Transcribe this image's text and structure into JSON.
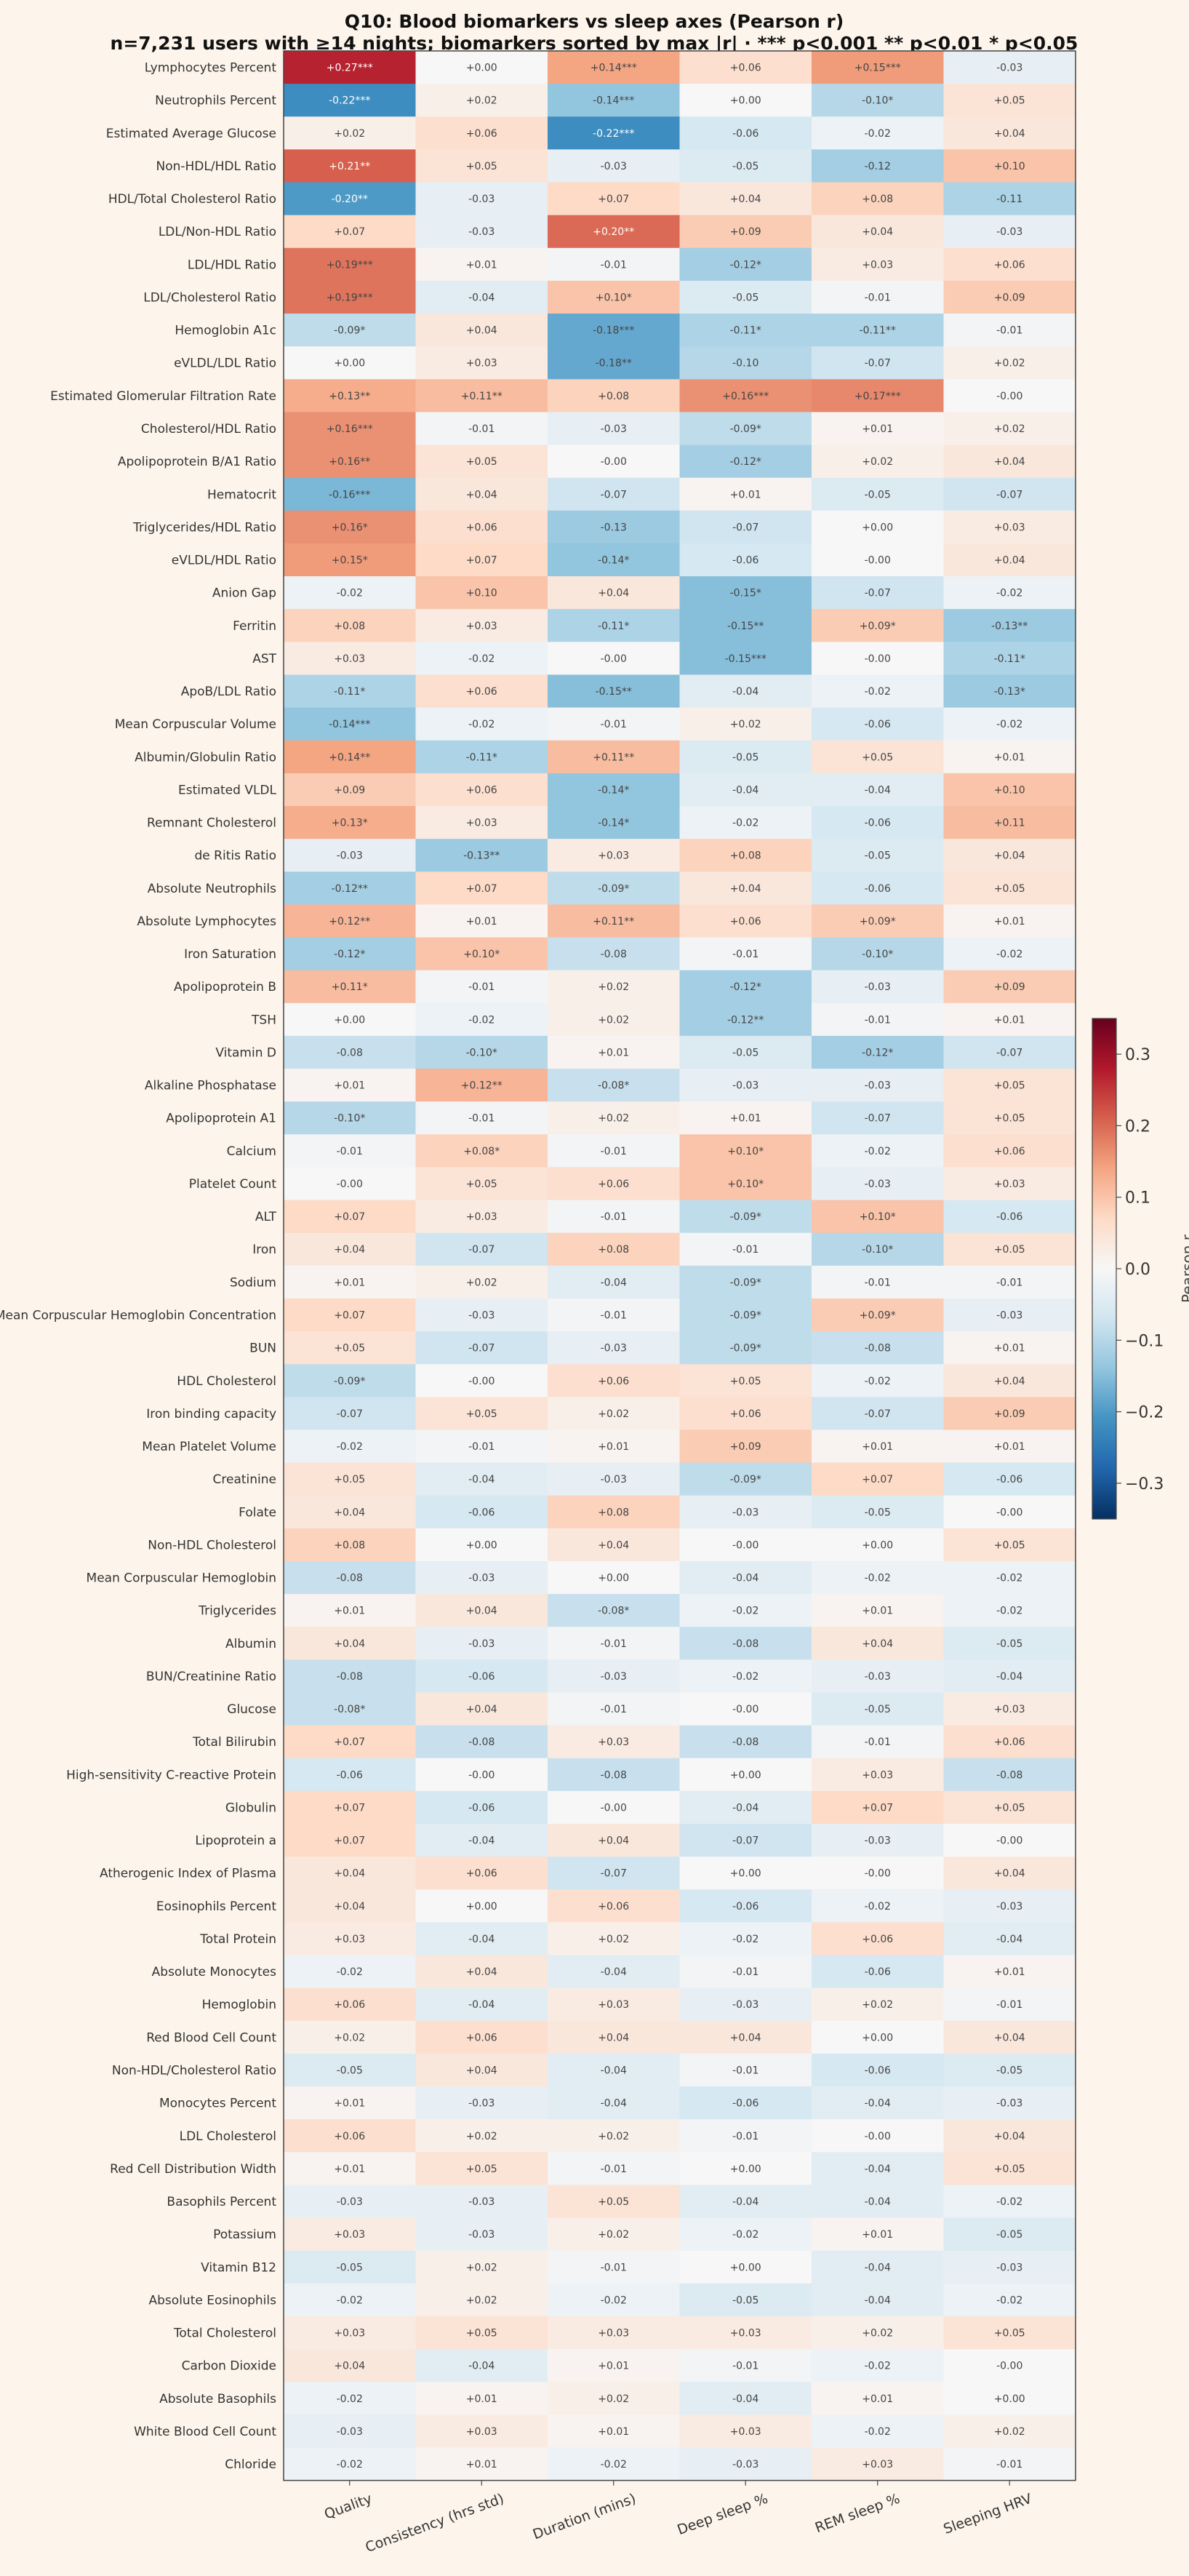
{
  "chart_data": {
    "type": "heatmap",
    "title": "Q10: Blood biomarkers vs sleep axes (Pearson r)",
    "subtitle": "n=7,231 users with ≥14 nights; biomarkers sorted by max |r|  ·  *** p<0.001  ** p<0.01  * p<0.05",
    "columns": [
      "Quality",
      "Consistency (hrs std)",
      "Duration (mins)",
      "Deep sleep %",
      "REM sleep %",
      "Sleeping HRV"
    ],
    "colorbar": {
      "label": "Pearson r",
      "range": [
        -0.35,
        0.35
      ],
      "ticks": [
        -0.3,
        -0.2,
        -0.1,
        0.0,
        0.1,
        0.2,
        0.3
      ],
      "tick_labels": [
        "−0.3",
        "−0.2",
        "−0.1",
        "0.0",
        "0.1",
        "0.2",
        "0.3"
      ],
      "colormap": "RdBu_r"
    },
    "rows": [
      {
        "name": "Lymphocytes Percent",
        "cells": [
          "+0.27***",
          "+0.00",
          "+0.14***",
          "+0.06",
          "+0.15***",
          "-0.03"
        ]
      },
      {
        "name": "Neutrophils Percent",
        "cells": [
          "-0.22***",
          "+0.02",
          "-0.14***",
          "+0.00",
          "-0.10*",
          "+0.05"
        ]
      },
      {
        "name": "Estimated Average Glucose",
        "cells": [
          "+0.02",
          "+0.06",
          "-0.22***",
          "-0.06",
          "-0.02",
          "+0.04"
        ]
      },
      {
        "name": "Non-HDL/HDL Ratio",
        "cells": [
          "+0.21**",
          "+0.05",
          "-0.03",
          "-0.05",
          "-0.12",
          "+0.10"
        ]
      },
      {
        "name": "HDL/Total Cholesterol Ratio",
        "cells": [
          "-0.20**",
          "-0.03",
          "+0.07",
          "+0.04",
          "+0.08",
          "-0.11"
        ]
      },
      {
        "name": "LDL/Non-HDL Ratio",
        "cells": [
          "+0.07",
          "-0.03",
          "+0.20**",
          "+0.09",
          "+0.04",
          "-0.03"
        ]
      },
      {
        "name": "LDL/HDL Ratio",
        "cells": [
          "+0.19***",
          "+0.01",
          "-0.01",
          "-0.12*",
          "+0.03",
          "+0.06"
        ]
      },
      {
        "name": "LDL/Cholesterol Ratio",
        "cells": [
          "+0.19***",
          "-0.04",
          "+0.10*",
          "-0.05",
          "-0.01",
          "+0.09"
        ]
      },
      {
        "name": "Hemoglobin A1c",
        "cells": [
          "-0.09*",
          "+0.04",
          "-0.18***",
          "-0.11*",
          "-0.11**",
          "-0.01"
        ]
      },
      {
        "name": "eVLDL/LDL Ratio",
        "cells": [
          "+0.00",
          "+0.03",
          "-0.18**",
          "-0.10",
          "-0.07",
          "+0.02"
        ]
      },
      {
        "name": "Estimated Glomerular Filtration Rate",
        "cells": [
          "+0.13**",
          "+0.11**",
          "+0.08",
          "+0.16***",
          "+0.17***",
          "-0.00"
        ]
      },
      {
        "name": "Cholesterol/HDL Ratio",
        "cells": [
          "+0.16***",
          "-0.01",
          "-0.03",
          "-0.09*",
          "+0.01",
          "+0.02"
        ]
      },
      {
        "name": "Apolipoprotein B/A1 Ratio",
        "cells": [
          "+0.16**",
          "+0.05",
          "-0.00",
          "-0.12*",
          "+0.02",
          "+0.04"
        ]
      },
      {
        "name": "Hematocrit",
        "cells": [
          "-0.16***",
          "+0.04",
          "-0.07",
          "+0.01",
          "-0.05",
          "-0.07"
        ]
      },
      {
        "name": "Triglycerides/HDL Ratio",
        "cells": [
          "+0.16*",
          "+0.06",
          "-0.13",
          "-0.07",
          "+0.00",
          "+0.03"
        ]
      },
      {
        "name": "eVLDL/HDL Ratio",
        "cells": [
          "+0.15*",
          "+0.07",
          "-0.14*",
          "-0.06",
          "-0.00",
          "+0.04"
        ]
      },
      {
        "name": "Anion Gap",
        "cells": [
          "-0.02",
          "+0.10",
          "+0.04",
          "-0.15*",
          "-0.07",
          "-0.02"
        ]
      },
      {
        "name": "Ferritin",
        "cells": [
          "+0.08",
          "+0.03",
          "-0.11*",
          "-0.15**",
          "+0.09*",
          "-0.13**"
        ]
      },
      {
        "name": "AST",
        "cells": [
          "+0.03",
          "-0.02",
          "-0.00",
          "-0.15***",
          "-0.00",
          "-0.11*"
        ]
      },
      {
        "name": "ApoB/LDL Ratio",
        "cells": [
          "-0.11*",
          "+0.06",
          "-0.15**",
          "-0.04",
          "-0.02",
          "-0.13*"
        ]
      },
      {
        "name": "Mean Corpuscular Volume",
        "cells": [
          "-0.14***",
          "-0.02",
          "-0.01",
          "+0.02",
          "-0.06",
          "-0.02"
        ]
      },
      {
        "name": "Albumin/Globulin Ratio",
        "cells": [
          "+0.14**",
          "-0.11*",
          "+0.11**",
          "-0.05",
          "+0.05",
          "+0.01"
        ]
      },
      {
        "name": "Estimated VLDL",
        "cells": [
          "+0.09",
          "+0.06",
          "-0.14*",
          "-0.04",
          "-0.04",
          "+0.10"
        ]
      },
      {
        "name": "Remnant Cholesterol",
        "cells": [
          "+0.13*",
          "+0.03",
          "-0.14*",
          "-0.02",
          "-0.06",
          "+0.11"
        ]
      },
      {
        "name": "de Ritis Ratio",
        "cells": [
          "-0.03",
          "-0.13**",
          "+0.03",
          "+0.08",
          "-0.05",
          "+0.04"
        ]
      },
      {
        "name": "Absolute Neutrophils",
        "cells": [
          "-0.12**",
          "+0.07",
          "-0.09*",
          "+0.04",
          "-0.06",
          "+0.05"
        ]
      },
      {
        "name": "Absolute Lymphocytes",
        "cells": [
          "+0.12**",
          "+0.01",
          "+0.11**",
          "+0.06",
          "+0.09*",
          "+0.01"
        ]
      },
      {
        "name": "Iron Saturation",
        "cells": [
          "-0.12*",
          "+0.10*",
          "-0.08",
          "-0.01",
          "-0.10*",
          "-0.02"
        ]
      },
      {
        "name": "Apolipoprotein B",
        "cells": [
          "+0.11*",
          "-0.01",
          "+0.02",
          "-0.12*",
          "-0.03",
          "+0.09"
        ]
      },
      {
        "name": "TSH",
        "cells": [
          "+0.00",
          "-0.02",
          "+0.02",
          "-0.12**",
          "-0.01",
          "+0.01"
        ]
      },
      {
        "name": "Vitamin D",
        "cells": [
          "-0.08",
          "-0.10*",
          "+0.01",
          "-0.05",
          "-0.12*",
          "-0.07"
        ]
      },
      {
        "name": "Alkaline Phosphatase",
        "cells": [
          "+0.01",
          "+0.12**",
          "-0.08*",
          "-0.03",
          "-0.03",
          "+0.05"
        ]
      },
      {
        "name": "Apolipoprotein A1",
        "cells": [
          "-0.10*",
          "-0.01",
          "+0.02",
          "+0.01",
          "-0.07",
          "+0.05"
        ]
      },
      {
        "name": "Calcium",
        "cells": [
          "-0.01",
          "+0.08*",
          "-0.01",
          "+0.10*",
          "-0.02",
          "+0.06"
        ]
      },
      {
        "name": "Platelet Count",
        "cells": [
          "-0.00",
          "+0.05",
          "+0.06",
          "+0.10*",
          "-0.03",
          "+0.03"
        ]
      },
      {
        "name": "ALT",
        "cells": [
          "+0.07",
          "+0.03",
          "-0.01",
          "-0.09*",
          "+0.10*",
          "-0.06"
        ]
      },
      {
        "name": "Iron",
        "cells": [
          "+0.04",
          "-0.07",
          "+0.08",
          "-0.01",
          "-0.10*",
          "+0.05"
        ]
      },
      {
        "name": "Sodium",
        "cells": [
          "+0.01",
          "+0.02",
          "-0.04",
          "-0.09*",
          "-0.01",
          "-0.01"
        ]
      },
      {
        "name": "Mean Corpuscular Hemoglobin Concentration",
        "cells": [
          "+0.07",
          "-0.03",
          "-0.01",
          "-0.09*",
          "+0.09*",
          "-0.03"
        ]
      },
      {
        "name": "BUN",
        "cells": [
          "+0.05",
          "-0.07",
          "-0.03",
          "-0.09*",
          "-0.08",
          "+0.01"
        ]
      },
      {
        "name": "HDL Cholesterol",
        "cells": [
          "-0.09*",
          "-0.00",
          "+0.06",
          "+0.05",
          "-0.02",
          "+0.04"
        ]
      },
      {
        "name": "Iron binding capacity",
        "cells": [
          "-0.07",
          "+0.05",
          "+0.02",
          "+0.06",
          "-0.07",
          "+0.09"
        ]
      },
      {
        "name": "Mean Platelet Volume",
        "cells": [
          "-0.02",
          "-0.01",
          "+0.01",
          "+0.09",
          "+0.01",
          "+0.01"
        ]
      },
      {
        "name": "Creatinine",
        "cells": [
          "+0.05",
          "-0.04",
          "-0.03",
          "-0.09*",
          "+0.07",
          "-0.06"
        ]
      },
      {
        "name": "Folate",
        "cells": [
          "+0.04",
          "-0.06",
          "+0.08",
          "-0.03",
          "-0.05",
          "-0.00"
        ]
      },
      {
        "name": "Non-HDL Cholesterol",
        "cells": [
          "+0.08",
          "+0.00",
          "+0.04",
          "-0.00",
          "+0.00",
          "+0.05"
        ]
      },
      {
        "name": "Mean Corpuscular Hemoglobin",
        "cells": [
          "-0.08",
          "-0.03",
          "+0.00",
          "-0.04",
          "-0.02",
          "-0.02"
        ]
      },
      {
        "name": "Triglycerides",
        "cells": [
          "+0.01",
          "+0.04",
          "-0.08*",
          "-0.02",
          "+0.01",
          "-0.02"
        ]
      },
      {
        "name": "Albumin",
        "cells": [
          "+0.04",
          "-0.03",
          "-0.01",
          "-0.08",
          "+0.04",
          "-0.05"
        ]
      },
      {
        "name": "BUN/Creatinine Ratio",
        "cells": [
          "-0.08",
          "-0.06",
          "-0.03",
          "-0.02",
          "-0.03",
          "-0.04"
        ]
      },
      {
        "name": "Glucose",
        "cells": [
          "-0.08*",
          "+0.04",
          "-0.01",
          "-0.00",
          "-0.05",
          "+0.03"
        ]
      },
      {
        "name": "Total Bilirubin",
        "cells": [
          "+0.07",
          "-0.08",
          "+0.03",
          "-0.08",
          "-0.01",
          "+0.06"
        ]
      },
      {
        "name": "High-sensitivity C-reactive Protein",
        "cells": [
          "-0.06",
          "-0.00",
          "-0.08",
          "+0.00",
          "+0.03",
          "-0.08"
        ]
      },
      {
        "name": "Globulin",
        "cells": [
          "+0.07",
          "-0.06",
          "-0.00",
          "-0.04",
          "+0.07",
          "+0.05"
        ]
      },
      {
        "name": "Lipoprotein a",
        "cells": [
          "+0.07",
          "-0.04",
          "+0.04",
          "-0.07",
          "-0.03",
          "-0.00"
        ]
      },
      {
        "name": "Atherogenic Index of Plasma",
        "cells": [
          "+0.04",
          "+0.06",
          "-0.07",
          "+0.00",
          "-0.00",
          "+0.04"
        ]
      },
      {
        "name": "Eosinophils Percent",
        "cells": [
          "+0.04",
          "+0.00",
          "+0.06",
          "-0.06",
          "-0.02",
          "-0.03"
        ]
      },
      {
        "name": "Total Protein",
        "cells": [
          "+0.03",
          "-0.04",
          "+0.02",
          "-0.02",
          "+0.06",
          "-0.04"
        ]
      },
      {
        "name": "Absolute Monocytes",
        "cells": [
          "-0.02",
          "+0.04",
          "-0.04",
          "-0.01",
          "-0.06",
          "+0.01"
        ]
      },
      {
        "name": "Hemoglobin",
        "cells": [
          "+0.06",
          "-0.04",
          "+0.03",
          "-0.03",
          "+0.02",
          "-0.01"
        ]
      },
      {
        "name": "Red Blood Cell Count",
        "cells": [
          "+0.02",
          "+0.06",
          "+0.04",
          "+0.04",
          "+0.00",
          "+0.04"
        ]
      },
      {
        "name": "Non-HDL/Cholesterol Ratio",
        "cells": [
          "-0.05",
          "+0.04",
          "-0.04",
          "-0.01",
          "-0.06",
          "-0.05"
        ]
      },
      {
        "name": "Monocytes Percent",
        "cells": [
          "+0.01",
          "-0.03",
          "-0.04",
          "-0.06",
          "-0.04",
          "-0.03"
        ]
      },
      {
        "name": "LDL Cholesterol",
        "cells": [
          "+0.06",
          "+0.02",
          "+0.02",
          "-0.01",
          "-0.00",
          "+0.04"
        ]
      },
      {
        "name": "Red Cell Distribution Width",
        "cells": [
          "+0.01",
          "+0.05",
          "-0.01",
          "+0.00",
          "-0.04",
          "+0.05"
        ]
      },
      {
        "name": "Basophils Percent",
        "cells": [
          "-0.03",
          "-0.03",
          "+0.05",
          "-0.04",
          "-0.04",
          "-0.02"
        ]
      },
      {
        "name": "Potassium",
        "cells": [
          "+0.03",
          "-0.03",
          "+0.02",
          "-0.02",
          "+0.01",
          "-0.05"
        ]
      },
      {
        "name": "Vitamin B12",
        "cells": [
          "-0.05",
          "+0.02",
          "-0.01",
          "+0.00",
          "-0.04",
          "-0.03"
        ]
      },
      {
        "name": "Absolute Eosinophils",
        "cells": [
          "-0.02",
          "+0.02",
          "-0.02",
          "-0.05",
          "-0.04",
          "-0.02"
        ]
      },
      {
        "name": "Total Cholesterol",
        "cells": [
          "+0.03",
          "+0.05",
          "+0.03",
          "+0.03",
          "+0.02",
          "+0.05"
        ]
      },
      {
        "name": "Carbon Dioxide",
        "cells": [
          "+0.04",
          "-0.04",
          "+0.01",
          "-0.01",
          "-0.02",
          "-0.00"
        ]
      },
      {
        "name": "Absolute Basophils",
        "cells": [
          "-0.02",
          "+0.01",
          "+0.02",
          "-0.04",
          "+0.01",
          "+0.00"
        ]
      },
      {
        "name": "White Blood Cell Count",
        "cells": [
          "-0.03",
          "+0.03",
          "+0.01",
          "+0.03",
          "-0.02",
          "+0.02"
        ]
      },
      {
        "name": "Chloride",
        "cells": [
          "-0.02",
          "+0.01",
          "-0.02",
          "-0.03",
          "+0.03",
          "-0.01"
        ]
      }
    ]
  }
}
